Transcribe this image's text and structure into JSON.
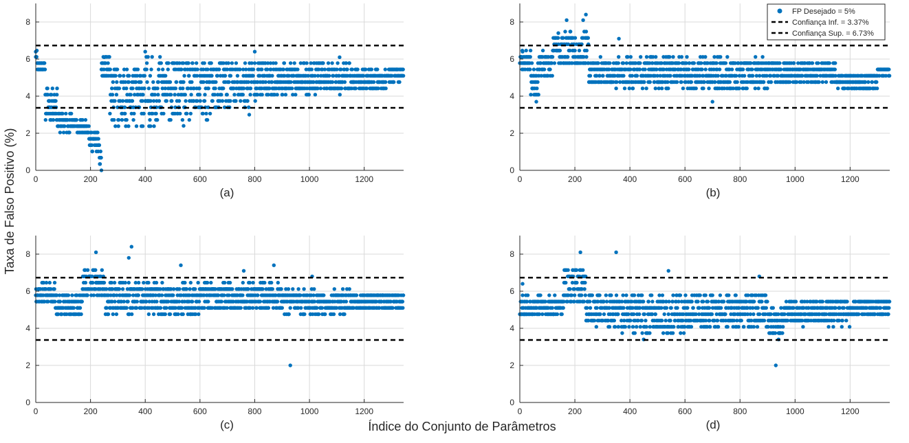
{
  "figure": {
    "ylabel": "Taxa de Falso Positivo (%)",
    "xlabel": "Índice do Conjunto de Parâmetros",
    "colors": {
      "points": "#0072BD",
      "conf_lines": "#000000",
      "grid": "#d9d9d9",
      "axis": "#262626"
    }
  },
  "legend": {
    "placement": "top-right of panel (b)",
    "entries": [
      {
        "label": "FP Desejado = 5%",
        "marker": "dot"
      },
      {
        "label": "Confiança Inf. = 3.37%",
        "marker": "dashed-line"
      },
      {
        "label": "Confiança Sup. = 6.73%",
        "marker": "dashed-line"
      }
    ]
  },
  "chart_data": [
    {
      "type": "scatter",
      "panel_label": "(a)",
      "xlim": [
        0,
        1344
      ],
      "ylim": [
        0,
        9
      ],
      "xticks": [
        0,
        200,
        400,
        600,
        800,
        1000,
        1200
      ],
      "yticks": [
        0,
        2,
        4,
        6,
        8
      ],
      "grid": true,
      "conf_inf": 3.37,
      "conf_sup": 6.73,
      "generator": {
        "n": 1344,
        "step": 0.34,
        "seed": 11
      },
      "segments": [
        {
          "x": [
            0,
            5
          ],
          "center": 6.3,
          "spread": 0.1
        },
        {
          "x": [
            5,
            35
          ],
          "center": 5.6,
          "spread": 0.3
        },
        {
          "x": [
            35,
            80
          ],
          "center": 3.6,
          "spread": 0.9
        },
        {
          "x": [
            80,
            150
          ],
          "center": 2.6,
          "spread": 0.5
        },
        {
          "x": [
            150,
            195
          ],
          "center": 2.3,
          "spread": 0.3
        },
        {
          "x": [
            195,
            230
          ],
          "center": 1.6,
          "spread": 0.5
        },
        {
          "x": [
            230,
            240
          ],
          "center": 0.7,
          "spread": 0.7
        },
        {
          "x": [
            240,
            270
          ],
          "center": 5.5,
          "spread": 0.6
        },
        {
          "x": [
            270,
            400
          ],
          "center": 4.0,
          "spread": 1.6
        },
        {
          "x": [
            400,
            500
          ],
          "center": 4.3,
          "spread": 1.8
        },
        {
          "x": [
            500,
            640
          ],
          "center": 4.3,
          "spread": 1.6
        },
        {
          "x": [
            640,
            780
          ],
          "center": 4.6,
          "spread": 1.3
        },
        {
          "x": [
            780,
            880
          ],
          "center": 4.9,
          "spread": 1.0
        },
        {
          "x": [
            880,
            1000
          ],
          "center": 4.9,
          "spread": 0.8
        },
        {
          "x": [
            1000,
            1150
          ],
          "center": 5.0,
          "spread": 0.8
        },
        {
          "x": [
            1150,
            1280
          ],
          "center": 4.9,
          "spread": 0.5
        },
        {
          "x": [
            1280,
            1344
          ],
          "center": 5.2,
          "spread": 0.4
        }
      ],
      "extra_points": [
        [
          0,
          6.4
        ],
        [
          240,
          0.0
        ],
        [
          400,
          6.4
        ],
        [
          800,
          6.4
        ],
        [
          540,
          2.4
        ],
        [
          250,
          6.1
        ],
        [
          780,
          3.0
        ],
        [
          1110,
          6.1
        ]
      ]
    },
    {
      "type": "scatter",
      "panel_label": "(b)",
      "xlim": [
        0,
        1344
      ],
      "ylim": [
        0,
        9
      ],
      "xticks": [
        0,
        200,
        400,
        600,
        800,
        1000,
        1200
      ],
      "yticks": [
        0,
        2,
        4,
        6,
        8
      ],
      "grid": true,
      "conf_inf": 3.37,
      "conf_sup": 6.73,
      "generator": {
        "n": 1344,
        "step": 0.34,
        "seed": 23
      },
      "segments": [
        {
          "x": [
            0,
            40
          ],
          "center": 5.9,
          "spread": 0.5
        },
        {
          "x": [
            40,
            70
          ],
          "center": 4.9,
          "spread": 0.8
        },
        {
          "x": [
            70,
            120
          ],
          "center": 5.7,
          "spread": 0.6
        },
        {
          "x": [
            120,
            250
          ],
          "center": 6.5,
          "spread": 0.9
        },
        {
          "x": [
            250,
            350
          ],
          "center": 5.3,
          "spread": 0.7
        },
        {
          "x": [
            350,
            600
          ],
          "center": 5.3,
          "spread": 0.8
        },
        {
          "x": [
            600,
            900
          ],
          "center": 5.2,
          "spread": 0.8
        },
        {
          "x": [
            900,
            1150
          ],
          "center": 5.3,
          "spread": 0.6
        },
        {
          "x": [
            1150,
            1300
          ],
          "center": 4.8,
          "spread": 0.4
        },
        {
          "x": [
            1300,
            1344
          ],
          "center": 5.4,
          "spread": 0.2
        }
      ],
      "extra_points": [
        [
          170,
          8.1
        ],
        [
          240,
          8.4
        ],
        [
          230,
          8.1
        ],
        [
          60,
          3.7
        ],
        [
          700,
          3.7
        ],
        [
          360,
          7.1
        ],
        [
          10,
          6.4
        ],
        [
          140,
          7.4
        ]
      ]
    },
    {
      "type": "scatter",
      "panel_label": "(c)",
      "xlim": [
        0,
        1344
      ],
      "ylim": [
        0,
        9
      ],
      "xticks": [
        0,
        200,
        400,
        600,
        800,
        1000,
        1200
      ],
      "yticks": [
        0,
        2,
        4,
        6,
        8
      ],
      "grid": true,
      "conf_inf": 3.37,
      "conf_sup": 6.73,
      "generator": {
        "n": 1344,
        "step": 0.34,
        "seed": 37
      },
      "segments": [
        {
          "x": [
            0,
            70
          ],
          "center": 5.9,
          "spread": 0.5
        },
        {
          "x": [
            70,
            170
          ],
          "center": 5.2,
          "spread": 0.6
        },
        {
          "x": [
            170,
            250
          ],
          "center": 6.4,
          "spread": 0.8
        },
        {
          "x": [
            250,
            600
          ],
          "center": 5.6,
          "spread": 0.8
        },
        {
          "x": [
            600,
            900
          ],
          "center": 5.7,
          "spread": 0.7
        },
        {
          "x": [
            900,
            1150
          ],
          "center": 5.4,
          "spread": 0.6
        },
        {
          "x": [
            1150,
            1344
          ],
          "center": 5.5,
          "spread": 0.4
        }
      ],
      "extra_points": [
        [
          220,
          8.1
        ],
        [
          350,
          8.4
        ],
        [
          930,
          2.0
        ],
        [
          870,
          7.4
        ],
        [
          530,
          7.4
        ],
        [
          1010,
          6.8
        ],
        [
          760,
          7.1
        ],
        [
          340,
          7.8
        ]
      ]
    },
    {
      "type": "scatter",
      "panel_label": "(d)",
      "xlim": [
        0,
        1344
      ],
      "ylim": [
        0,
        9
      ],
      "xticks": [
        0,
        200,
        400,
        600,
        800,
        1000,
        1200
      ],
      "yticks": [
        0,
        2,
        4,
        6,
        8
      ],
      "grid": true,
      "conf_inf": 3.37,
      "conf_sup": 6.73,
      "generator": {
        "n": 1344,
        "step": 0.34,
        "seed": 53
      },
      "segments": [
        {
          "x": [
            0,
            40
          ],
          "center": 5.2,
          "spread": 0.6
        },
        {
          "x": [
            40,
            160
          ],
          "center": 5.2,
          "spread": 0.5
        },
        {
          "x": [
            160,
            240
          ],
          "center": 6.3,
          "spread": 0.9
        },
        {
          "x": [
            240,
            350
          ],
          "center": 5.0,
          "spread": 0.8
        },
        {
          "x": [
            350,
            600
          ],
          "center": 4.8,
          "spread": 1.0
        },
        {
          "x": [
            600,
            900
          ],
          "center": 4.9,
          "spread": 0.9
        },
        {
          "x": [
            900,
            960
          ],
          "center": 4.3,
          "spread": 0.7
        },
        {
          "x": [
            960,
            1200
          ],
          "center": 4.9,
          "spread": 0.7
        },
        {
          "x": [
            1200,
            1344
          ],
          "center": 5.1,
          "spread": 0.5
        }
      ],
      "extra_points": [
        [
          220,
          8.1
        ],
        [
          350,
          8.1
        ],
        [
          930,
          2.0
        ],
        [
          940,
          3.4
        ],
        [
          540,
          7.1
        ],
        [
          870,
          6.8
        ],
        [
          10,
          6.4
        ],
        [
          450,
          3.4
        ]
      ]
    }
  ]
}
